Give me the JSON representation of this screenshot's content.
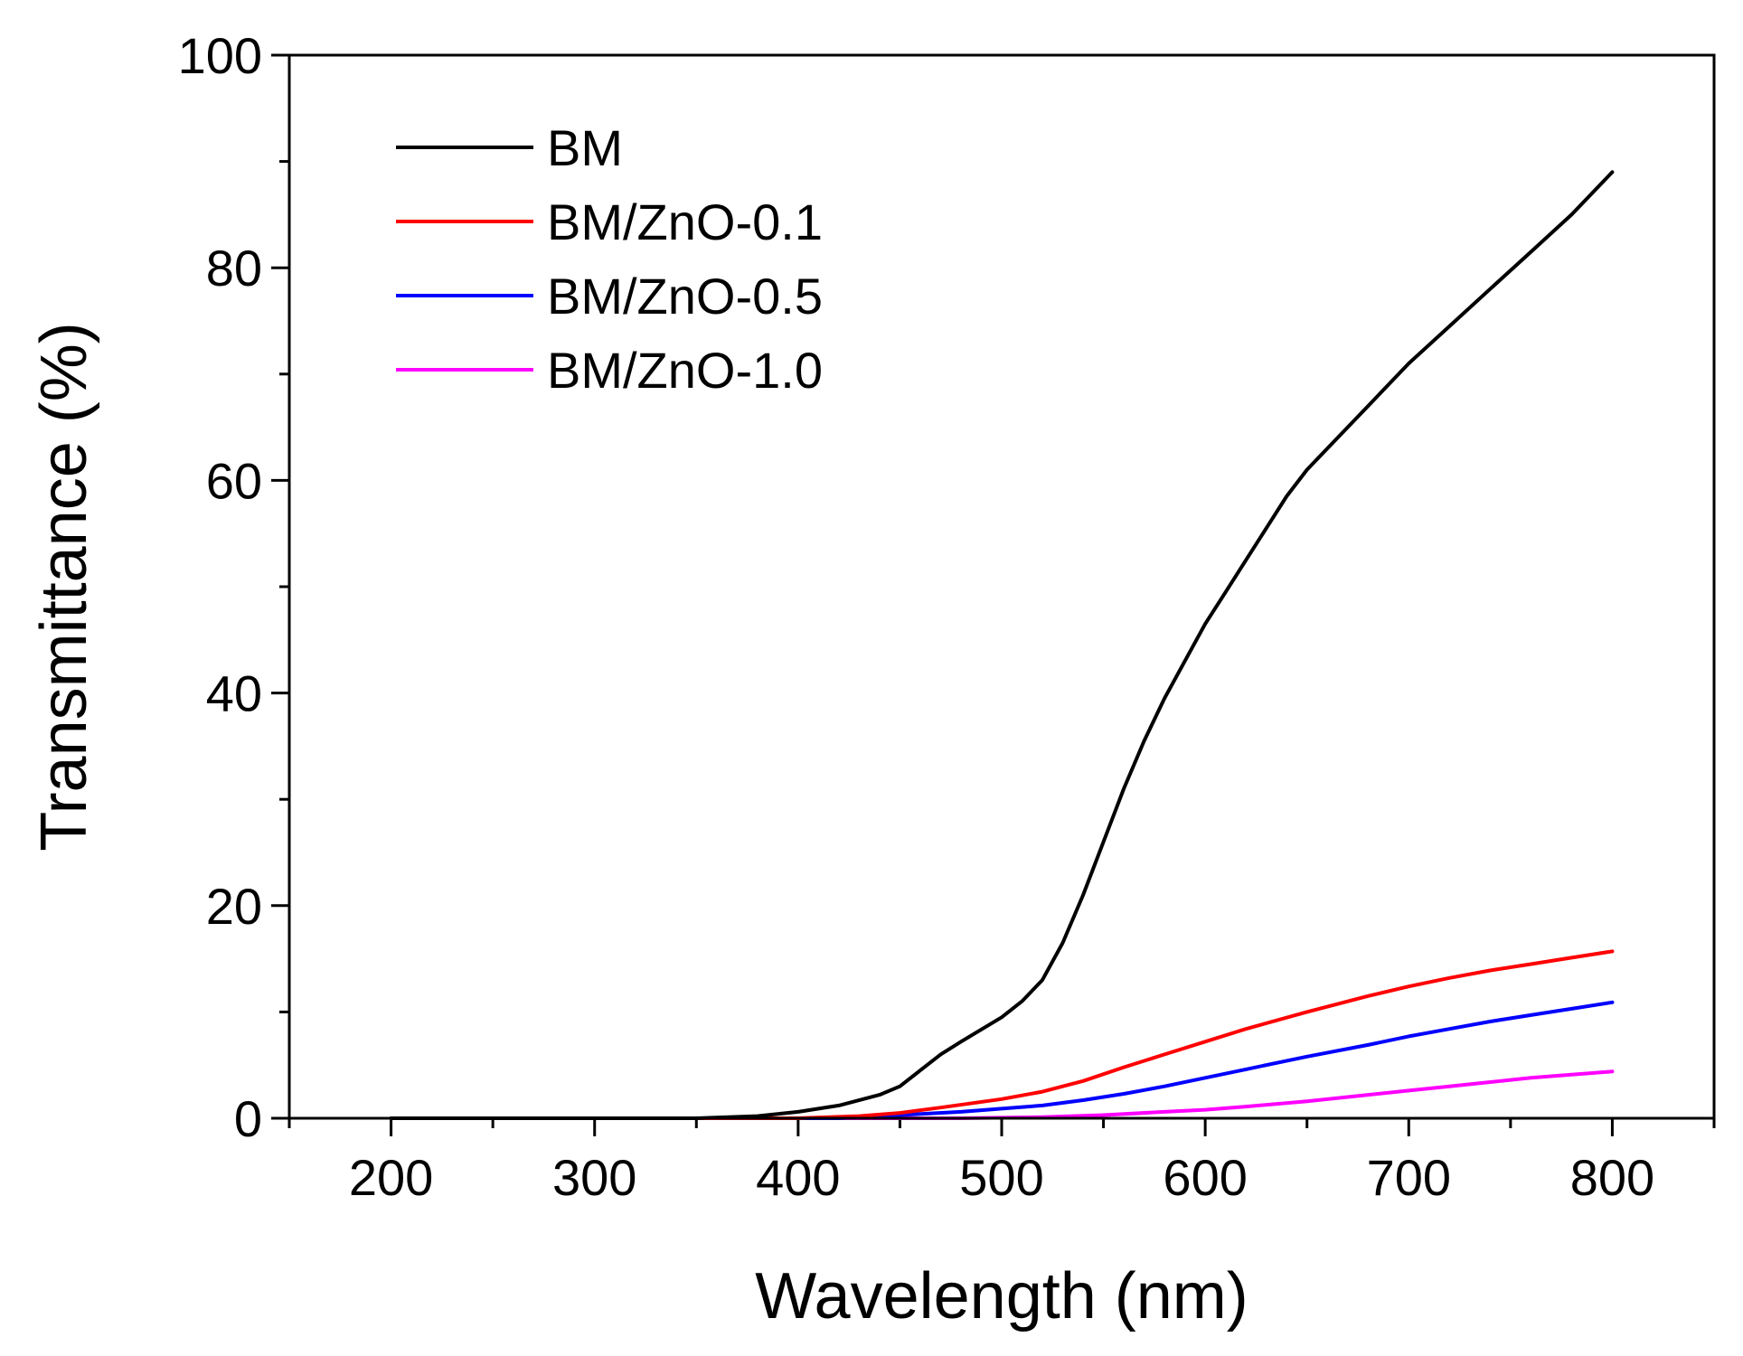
{
  "chart_data": {
    "type": "line",
    "title": "",
    "xlabel": "Wavelength (nm)",
    "ylabel": "Transmittance (%)",
    "xlim": [
      150,
      850
    ],
    "ylim": [
      0,
      100
    ],
    "x_ticks": [
      200,
      300,
      400,
      500,
      600,
      700,
      800
    ],
    "y_ticks": [
      0,
      20,
      40,
      60,
      80,
      100
    ],
    "grid": false,
    "legend_position": "top-left",
    "series": [
      {
        "name": "BM",
        "color": "#000000",
        "x": [
          200,
          350,
          380,
          400,
          420,
          440,
          450,
          460,
          470,
          480,
          500,
          510,
          520,
          530,
          540,
          550,
          560,
          570,
          580,
          590,
          600,
          610,
          620,
          630,
          640,
          650,
          660,
          680,
          700,
          720,
          740,
          760,
          780,
          800
        ],
        "y": [
          0,
          0,
          0.2,
          0.6,
          1.2,
          2.2,
          3.0,
          4.5,
          6.0,
          7.2,
          9.5,
          11.0,
          13.0,
          16.5,
          21.0,
          26.0,
          31.0,
          35.5,
          39.5,
          43.0,
          46.5,
          49.5,
          52.5,
          55.5,
          58.5,
          61.0,
          63.0,
          67.0,
          71.0,
          74.5,
          78.0,
          81.5,
          85.0,
          89.0
        ]
      },
      {
        "name": "BM/ZnO-0.1",
        "color": "#ff0000",
        "x": [
          200,
          400,
          430,
          450,
          470,
          500,
          520,
          540,
          560,
          580,
          600,
          620,
          650,
          680,
          700,
          720,
          740,
          760,
          780,
          800
        ],
        "y": [
          0,
          0,
          0.2,
          0.5,
          1.0,
          1.8,
          2.5,
          3.5,
          4.8,
          6.0,
          7.2,
          8.4,
          10.0,
          11.5,
          12.4,
          13.2,
          13.9,
          14.5,
          15.1,
          15.7
        ]
      },
      {
        "name": "BM/ZnO-0.5",
        "color": "#0000ff",
        "x": [
          200,
          420,
          450,
          480,
          500,
          520,
          540,
          560,
          580,
          600,
          620,
          650,
          680,
          700,
          720,
          740,
          760,
          780,
          800
        ],
        "y": [
          0,
          0,
          0.3,
          0.6,
          0.9,
          1.2,
          1.7,
          2.3,
          3.0,
          3.8,
          4.6,
          5.8,
          6.9,
          7.7,
          8.4,
          9.1,
          9.7,
          10.3,
          10.9
        ]
      },
      {
        "name": "BM/ZnO-1.0",
        "color": "#ff00ff",
        "x": [
          200,
          480,
          520,
          550,
          580,
          600,
          620,
          650,
          680,
          700,
          720,
          740,
          760,
          780,
          800
        ],
        "y": [
          0,
          0,
          0.1,
          0.3,
          0.6,
          0.8,
          1.1,
          1.6,
          2.2,
          2.6,
          3.0,
          3.4,
          3.8,
          4.1,
          4.4
        ]
      }
    ]
  }
}
